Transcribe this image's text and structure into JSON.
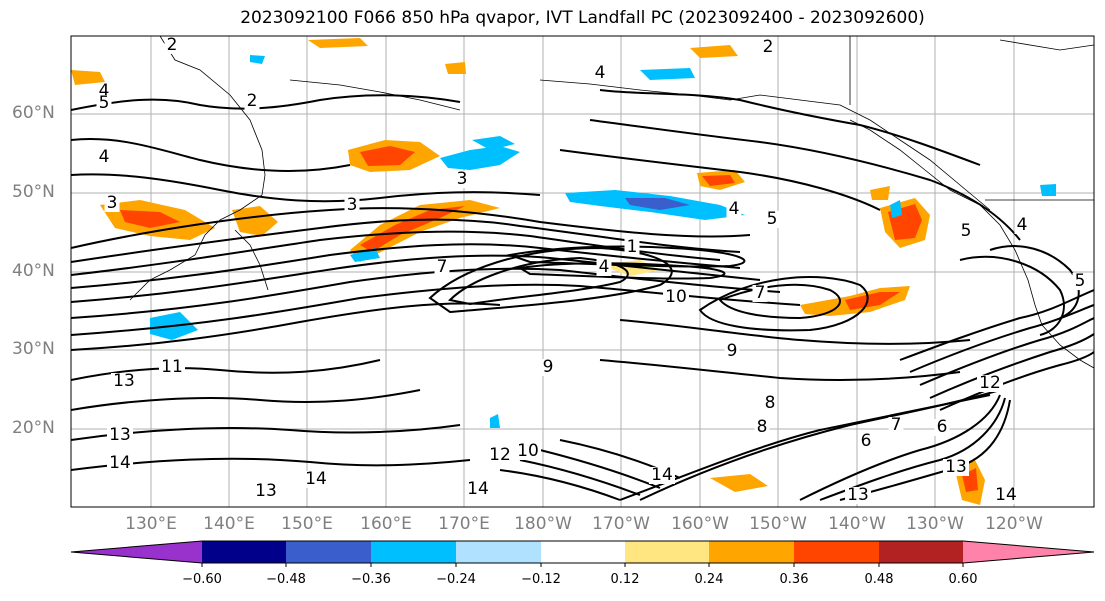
{
  "title": "2023092100 F066 850 hPa qvapor, IVT Landfall PC (2023092400 - 2023092600)",
  "map": {
    "lat_labels": [
      "60°N",
      "50°N",
      "40°N",
      "30°N",
      "20°N"
    ],
    "lon_labels": [
      "130°E",
      "140°E",
      "150°E",
      "160°E",
      "170°E",
      "180°W",
      "170°W",
      "160°W",
      "150°W",
      "140°W",
      "130°W",
      "120°W"
    ],
    "contour_labels": [
      "2",
      "2",
      "2",
      "4",
      "5",
      "4",
      "3",
      "3",
      "3",
      "4",
      "5",
      "5",
      "4",
      "4",
      "5",
      "1",
      "4",
      "7",
      "10",
      "7",
      "9",
      "8",
      "6",
      "13",
      "11",
      "13",
      "14",
      "13",
      "14",
      "14",
      "12",
      "10",
      "14",
      "13",
      "12",
      "13",
      "14",
      "9",
      "6",
      "7",
      "8"
    ]
  },
  "colorbar": {
    "colors": [
      "#9932cc",
      "#00008b",
      "#3a5fcd",
      "#00bfff",
      "#b0e2ff",
      "#ffffff",
      "#ffe680",
      "#ffa500",
      "#ff4500",
      "#b22222",
      "#ff82ab"
    ],
    "ticks": [
      "−0.60",
      "−0.48",
      "−0.36",
      "−0.24",
      "−0.12",
      "0.12",
      "0.24",
      "0.36",
      "0.48",
      "0.60"
    ]
  }
}
